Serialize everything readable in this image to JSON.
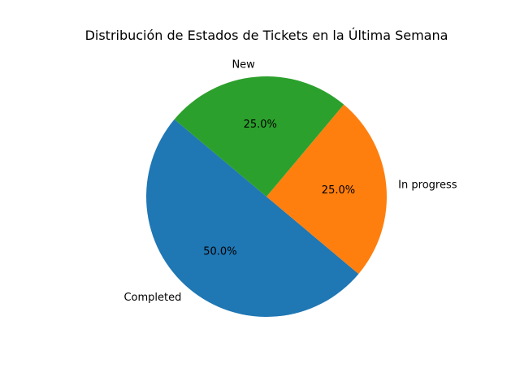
{
  "chart_data": {
    "type": "pie",
    "title": "Distribución de Estados de Tickets en la Última Semana",
    "labels": [
      "Completed",
      "In progress",
      "New"
    ],
    "values": [
      50,
      25,
      25
    ],
    "percent_labels": [
      "50.0%",
      "25.0%",
      "25.0%"
    ],
    "colors": [
      "#1f77b4",
      "#ff7f0e",
      "#2ca02c"
    ],
    "start_angle_deg": 140,
    "direction": "counterclockwise"
  }
}
